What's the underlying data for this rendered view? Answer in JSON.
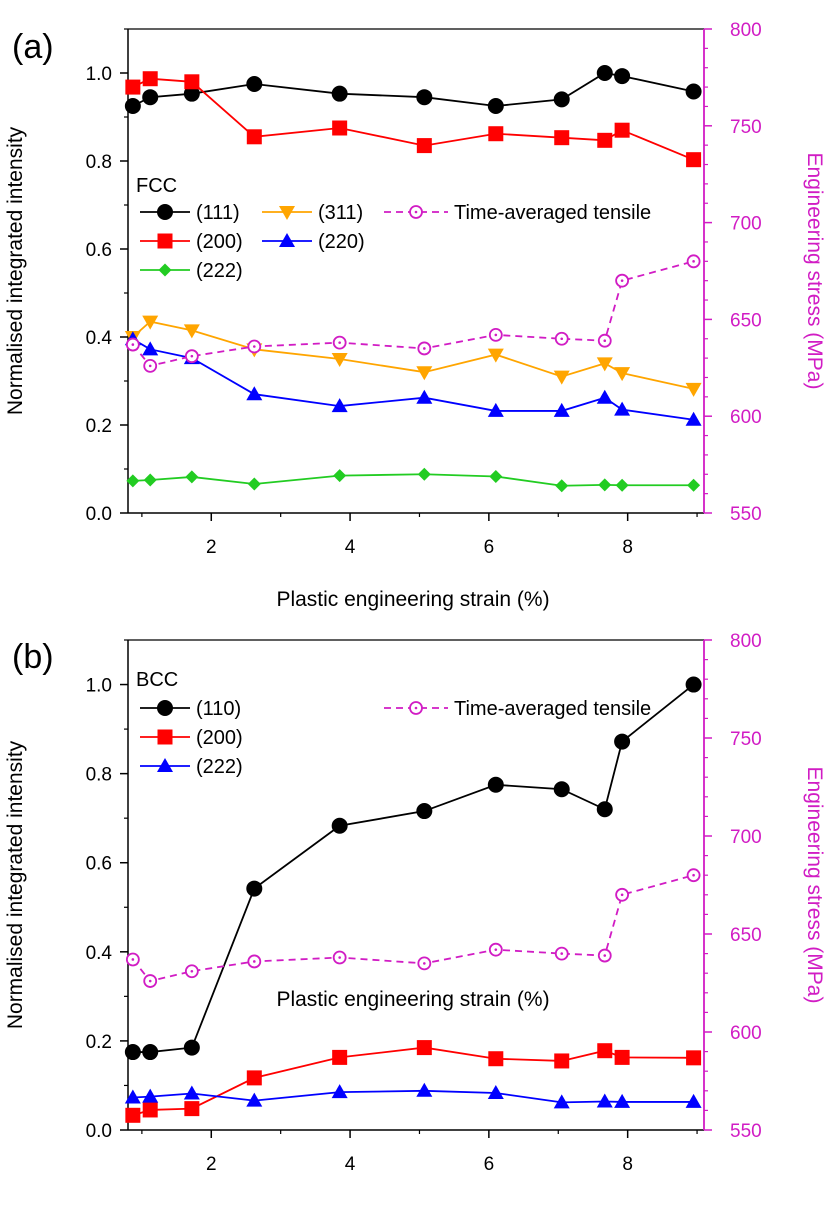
{
  "colors": {
    "black": "#000000",
    "red": "#ff0000",
    "orange": "#ffa500",
    "blue": "#0000ff",
    "green": "#22cc22",
    "magenta": "#d11cc4"
  },
  "chart_data": [
    {
      "type": "line",
      "panel_label": "(a)",
      "xlabel": "Plastic engineering strain (%)",
      "ylabel": "Normalised integrated intensity",
      "y2label": "Engineering stress (MPa)",
      "xlim": [
        0.8,
        9.1
      ],
      "ylim": [
        0.0,
        1.1
      ],
      "y2lim": [
        550,
        800
      ],
      "xticks": [
        "2",
        "4",
        "6",
        "8"
      ],
      "yticks": [
        "0.0",
        "0.2",
        "0.4",
        "0.6",
        "0.8",
        "1.0"
      ],
      "y2ticks": [
        "550",
        "600",
        "650",
        "700",
        "750",
        "800"
      ],
      "legend_title": "FCC",
      "x": [
        0.87,
        1.12,
        1.72,
        2.62,
        3.85,
        5.07,
        6.1,
        7.05,
        7.67,
        7.92,
        8.95
      ],
      "series": [
        {
          "name": "(111)",
          "color": "black",
          "marker": "circle",
          "values": [
            0.925,
            0.945,
            0.953,
            0.975,
            0.953,
            0.945,
            0.925,
            0.94,
            1.0,
            0.993,
            0.958
          ]
        },
        {
          "name": "(200)",
          "color": "red",
          "marker": "square",
          "values": [
            0.968,
            0.987,
            0.98,
            0.855,
            0.875,
            0.835,
            0.862,
            0.853,
            0.847,
            0.87,
            0.803
          ]
        },
        {
          "name": "(222)",
          "color": "green",
          "marker": "diamond",
          "values": [
            0.073,
            0.075,
            0.082,
            0.066,
            0.085,
            0.088,
            0.083,
            0.062,
            0.064,
            0.063,
            0.063
          ]
        },
        {
          "name": "(311)",
          "color": "orange",
          "marker": "triangle-down",
          "values": [
            0.4,
            0.435,
            0.415,
            0.372,
            0.35,
            0.32,
            0.36,
            0.31,
            0.34,
            0.318,
            0.282
          ]
        },
        {
          "name": "(220)",
          "color": "blue",
          "marker": "triangle-up",
          "values": [
            0.395,
            0.372,
            0.352,
            0.27,
            0.243,
            0.262,
            0.232,
            0.232,
            0.262,
            0.235,
            0.212
          ]
        },
        {
          "name": "Time-averaged tensile",
          "color": "magenta",
          "marker": "open-circle",
          "dashed": true,
          "axis": "right",
          "values": [
            637,
            626,
            631,
            636,
            638,
            635,
            642,
            640,
            639,
            670,
            680
          ]
        }
      ]
    },
    {
      "type": "line",
      "panel_label": "(b)",
      "xlabel": "Plastic engineering strain (%)",
      "ylabel": "Normalised integrated intensity",
      "y2label": "Engineering stress (MPa)",
      "xlim": [
        0.8,
        9.1
      ],
      "ylim": [
        0.0,
        1.1
      ],
      "y2lim": [
        550,
        800
      ],
      "xticks": [
        "2",
        "4",
        "6",
        "8"
      ],
      "yticks": [
        "0.0",
        "0.2",
        "0.4",
        "0.6",
        "0.8",
        "1.0"
      ],
      "y2ticks": [
        "550",
        "600",
        "650",
        "700",
        "750",
        "800"
      ],
      "legend_title": "BCC",
      "x": [
        0.87,
        1.12,
        1.72,
        2.62,
        3.85,
        5.07,
        6.1,
        7.05,
        7.67,
        7.92,
        8.95
      ],
      "series": [
        {
          "name": "(110)",
          "color": "black",
          "marker": "circle",
          "values": [
            0.175,
            0.175,
            0.185,
            0.542,
            0.683,
            0.716,
            0.775,
            0.765,
            0.72,
            0.872,
            1.0
          ]
        },
        {
          "name": "(200)",
          "color": "red",
          "marker": "square",
          "values": [
            0.033,
            0.045,
            0.048,
            0.117,
            0.163,
            0.185,
            0.16,
            0.155,
            0.178,
            0.163,
            0.162
          ]
        },
        {
          "name": "(222)",
          "color": "blue",
          "marker": "triangle-up",
          "values": [
            0.073,
            0.075,
            0.082,
            0.066,
            0.085,
            0.088,
            0.083,
            0.062,
            0.064,
            0.063,
            0.063
          ]
        },
        {
          "name": "Time-averaged tensile",
          "color": "magenta",
          "marker": "open-circle",
          "dashed": true,
          "axis": "right",
          "values": [
            637,
            626,
            631,
            636,
            638,
            635,
            642,
            640,
            639,
            670,
            680
          ]
        }
      ]
    }
  ]
}
